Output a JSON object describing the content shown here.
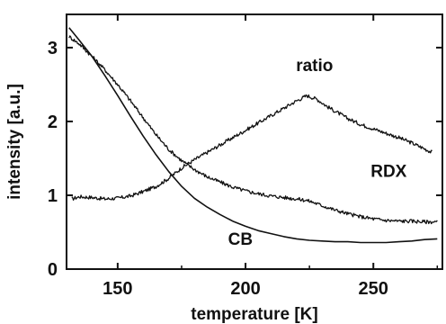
{
  "chart_data": {
    "type": "line",
    "title": "",
    "xlabel": "temperature [K]",
    "ylabel": "intensity [a.u.]",
    "xlim": [
      130,
      277
    ],
    "ylim": [
      0,
      3.45
    ],
    "xticks": [
      {
        "value": 150,
        "label": "150"
      },
      {
        "value": 200,
        "label": "200"
      },
      {
        "value": 250,
        "label": "250"
      }
    ],
    "yticks": [
      {
        "value": 0,
        "label": "0"
      },
      {
        "value": 1,
        "label": "1"
      },
      {
        "value": 2,
        "label": "2"
      },
      {
        "value": 3,
        "label": "3"
      }
    ],
    "grid": false,
    "legend": "none",
    "series": [
      {
        "name": "ratio",
        "color": "#111111",
        "noisy": true,
        "label_at": [
          227,
          2.68
        ],
        "points": [
          [
            132,
            0.95
          ],
          [
            135,
            0.98
          ],
          [
            140,
            0.97
          ],
          [
            145,
            0.95
          ],
          [
            150,
            0.96
          ],
          [
            155,
            0.99
          ],
          [
            160,
            1.05
          ],
          [
            165,
            1.12
          ],
          [
            170,
            1.23
          ],
          [
            175,
            1.37
          ],
          [
            180,
            1.48
          ],
          [
            185,
            1.58
          ],
          [
            190,
            1.68
          ],
          [
            195,
            1.78
          ],
          [
            200,
            1.88
          ],
          [
            205,
            1.98
          ],
          [
            210,
            2.08
          ],
          [
            215,
            2.18
          ],
          [
            220,
            2.28
          ],
          [
            224,
            2.35
          ],
          [
            228,
            2.3
          ],
          [
            232,
            2.2
          ],
          [
            236,
            2.12
          ],
          [
            240,
            2.04
          ],
          [
            245,
            1.96
          ],
          [
            250,
            1.9
          ],
          [
            255,
            1.84
          ],
          [
            260,
            1.78
          ],
          [
            265,
            1.71
          ],
          [
            270,
            1.63
          ],
          [
            273,
            1.58
          ]
        ]
      },
      {
        "name": "RDX",
        "color": "#111111",
        "noisy": true,
        "label_at": [
          256,
          1.25
        ],
        "points": [
          [
            131,
            3.15
          ],
          [
            135,
            3.05
          ],
          [
            140,
            2.88
          ],
          [
            145,
            2.7
          ],
          [
            150,
            2.5
          ],
          [
            155,
            2.28
          ],
          [
            160,
            2.05
          ],
          [
            165,
            1.82
          ],
          [
            170,
            1.62
          ],
          [
            175,
            1.47
          ],
          [
            180,
            1.35
          ],
          [
            185,
            1.25
          ],
          [
            190,
            1.18
          ],
          [
            195,
            1.11
          ],
          [
            200,
            1.06
          ],
          [
            205,
            1.02
          ],
          [
            210,
            0.99
          ],
          [
            215,
            0.97
          ],
          [
            220,
            0.95
          ],
          [
            224,
            0.93
          ],
          [
            226,
            0.91
          ],
          [
            230,
            0.86
          ],
          [
            235,
            0.8
          ],
          [
            240,
            0.75
          ],
          [
            245,
            0.71
          ],
          [
            250,
            0.68
          ],
          [
            255,
            0.66
          ],
          [
            260,
            0.65
          ],
          [
            265,
            0.65
          ],
          [
            270,
            0.64
          ],
          [
            275,
            0.64
          ]
        ]
      },
      {
        "name": "CB",
        "color": "#111111",
        "noisy": false,
        "label_at": [
          198,
          0.33
        ],
        "points": [
          [
            131,
            3.27
          ],
          [
            135,
            3.1
          ],
          [
            140,
            2.88
          ],
          [
            145,
            2.62
          ],
          [
            150,
            2.35
          ],
          [
            155,
            2.07
          ],
          [
            160,
            1.8
          ],
          [
            165,
            1.55
          ],
          [
            170,
            1.32
          ],
          [
            175,
            1.12
          ],
          [
            180,
            0.96
          ],
          [
            185,
            0.84
          ],
          [
            190,
            0.74
          ],
          [
            195,
            0.65
          ],
          [
            200,
            0.58
          ],
          [
            205,
            0.52
          ],
          [
            210,
            0.48
          ],
          [
            215,
            0.44
          ],
          [
            220,
            0.41
          ],
          [
            225,
            0.39
          ],
          [
            230,
            0.38
          ],
          [
            235,
            0.37
          ],
          [
            240,
            0.37
          ],
          [
            245,
            0.36
          ],
          [
            250,
            0.36
          ],
          [
            255,
            0.36
          ],
          [
            260,
            0.37
          ],
          [
            265,
            0.38
          ],
          [
            270,
            0.4
          ],
          [
            275,
            0.41
          ]
        ]
      }
    ]
  }
}
